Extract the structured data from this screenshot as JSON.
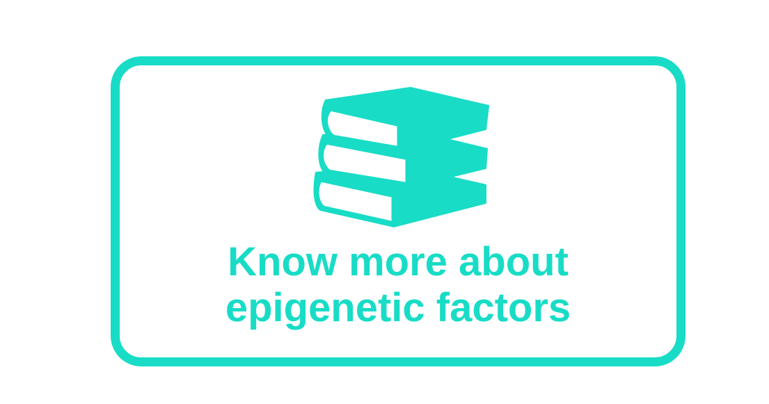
{
  "card": {
    "line1": "Know more about",
    "line2": "epigenetic factors",
    "icon": "books-stack-icon",
    "accent_color": "#18dcc6"
  }
}
